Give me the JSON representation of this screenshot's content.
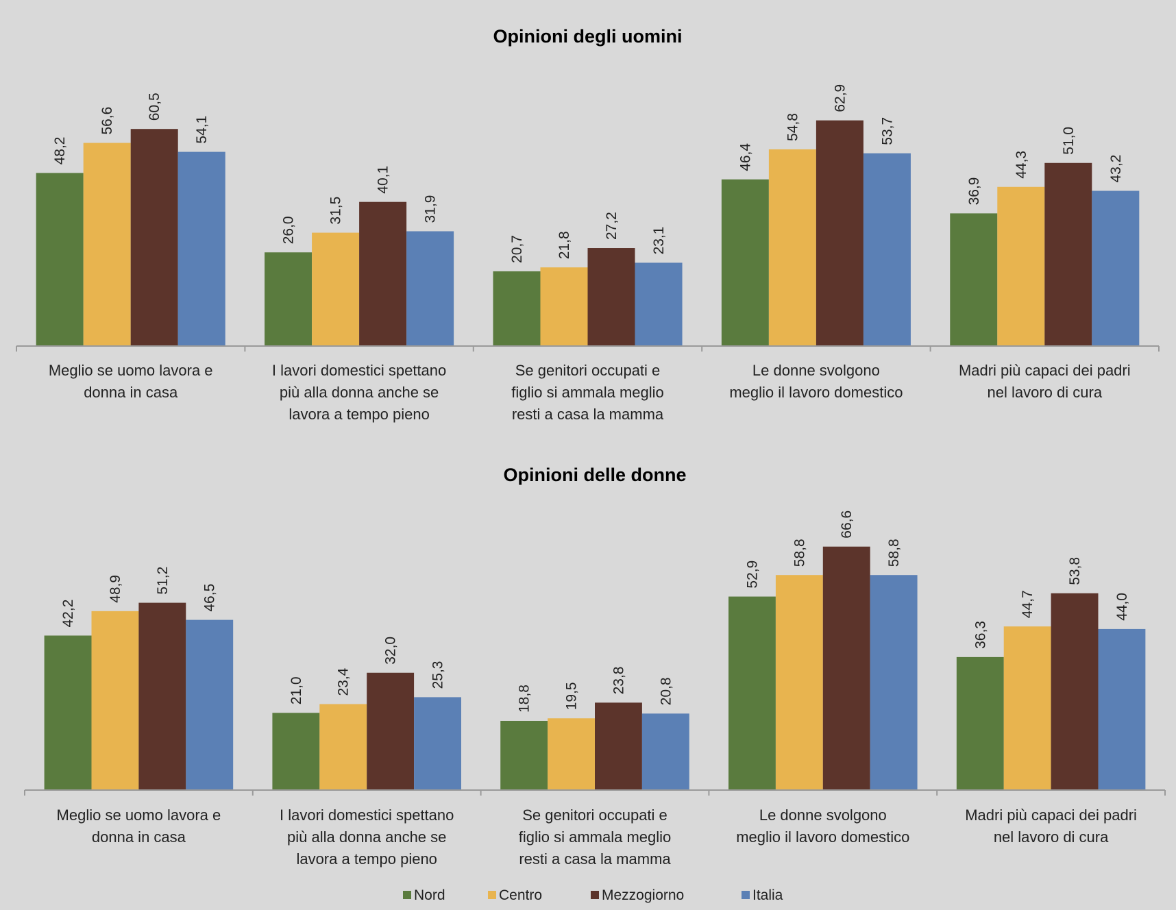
{
  "chart_data": [
    {
      "type": "bar",
      "title": "Opinioni degli uomini",
      "categories": [
        [
          "Meglio se uomo lavora e",
          "donna in casa"
        ],
        [
          "I lavori domestici spettano",
          "più alla donna anche se",
          "lavora a tempo pieno"
        ],
        [
          "Se genitori occupati e",
          "figlio si ammala meglio",
          "resti a casa la mamma"
        ],
        [
          "Le donne svolgono",
          "meglio il lavoro domestico"
        ],
        [
          "Madri più capaci dei padri",
          "nel lavoro di cura"
        ]
      ],
      "series": [
        {
          "name": "Nord",
          "values": [
            48.2,
            26.0,
            20.7,
            46.4,
            36.9
          ],
          "labels": [
            "48,2",
            "26,0",
            "20,7",
            "46,4",
            "36,9"
          ]
        },
        {
          "name": "Centro",
          "values": [
            56.6,
            31.5,
            21.8,
            54.8,
            44.3
          ],
          "labels": [
            "56,6",
            "31,5",
            "21,8",
            "54,8",
            "44,3"
          ]
        },
        {
          "name": "Mezzogiorno",
          "values": [
            60.5,
            40.1,
            27.2,
            62.9,
            51.0
          ],
          "labels": [
            "60,5",
            "40,1",
            "27,2",
            "62,9",
            "51,0"
          ]
        },
        {
          "name": "Italia",
          "values": [
            54.1,
            31.9,
            23.1,
            53.7,
            43.2
          ],
          "labels": [
            "54,1",
            "31,9",
            "23,1",
            "53,7",
            "43,2"
          ]
        }
      ],
      "xlabel": "",
      "ylabel": "",
      "ylim": [
        0,
        70
      ],
      "grid": false
    },
    {
      "type": "bar",
      "title": "Opinioni delle donne",
      "categories": [
        [
          "Meglio se uomo lavora e",
          "donna in casa"
        ],
        [
          "I lavori domestici spettano",
          "più alla donna anche se",
          "lavora a tempo pieno"
        ],
        [
          "Se genitori occupati e",
          "figlio si ammala meglio",
          "resti a casa la mamma"
        ],
        [
          "Le donne svolgono",
          "meglio il lavoro domestico"
        ],
        [
          "Madri più capaci dei padri",
          "nel lavoro di cura"
        ]
      ],
      "series": [
        {
          "name": "Nord",
          "values": [
            42.2,
            21.0,
            18.8,
            52.9,
            36.3
          ],
          "labels": [
            "42,2",
            "21,0",
            "18,8",
            "52,9",
            "36,3"
          ]
        },
        {
          "name": "Centro",
          "values": [
            48.9,
            23.4,
            19.5,
            58.8,
            44.7
          ],
          "labels": [
            "48,9",
            "23,4",
            "19,5",
            "58,8",
            "44,7"
          ]
        },
        {
          "name": "Mezzogiorno",
          "values": [
            51.2,
            32.0,
            23.8,
            66.6,
            53.8
          ],
          "labels": [
            "51,2",
            "32,0",
            "23,8",
            "66,6",
            "53,8"
          ]
        },
        {
          "name": "Italia",
          "values": [
            46.5,
            25.3,
            20.8,
            58.8,
            44.0
          ],
          "labels": [
            "46,5",
            "25,3",
            "20,8",
            "58,8",
            "44,0"
          ]
        }
      ],
      "xlabel": "",
      "ylabel": "",
      "ylim": [
        0,
        70
      ],
      "grid": false
    }
  ],
  "legend": {
    "placement": "bottom",
    "items": [
      {
        "name": "Nord",
        "color": "#5a7b3e"
      },
      {
        "name": "Centro",
        "color": "#e8b44f"
      },
      {
        "name": "Mezzogiorno",
        "color": "#5c342b"
      },
      {
        "name": "Italia",
        "color": "#5b80b5"
      }
    ]
  }
}
